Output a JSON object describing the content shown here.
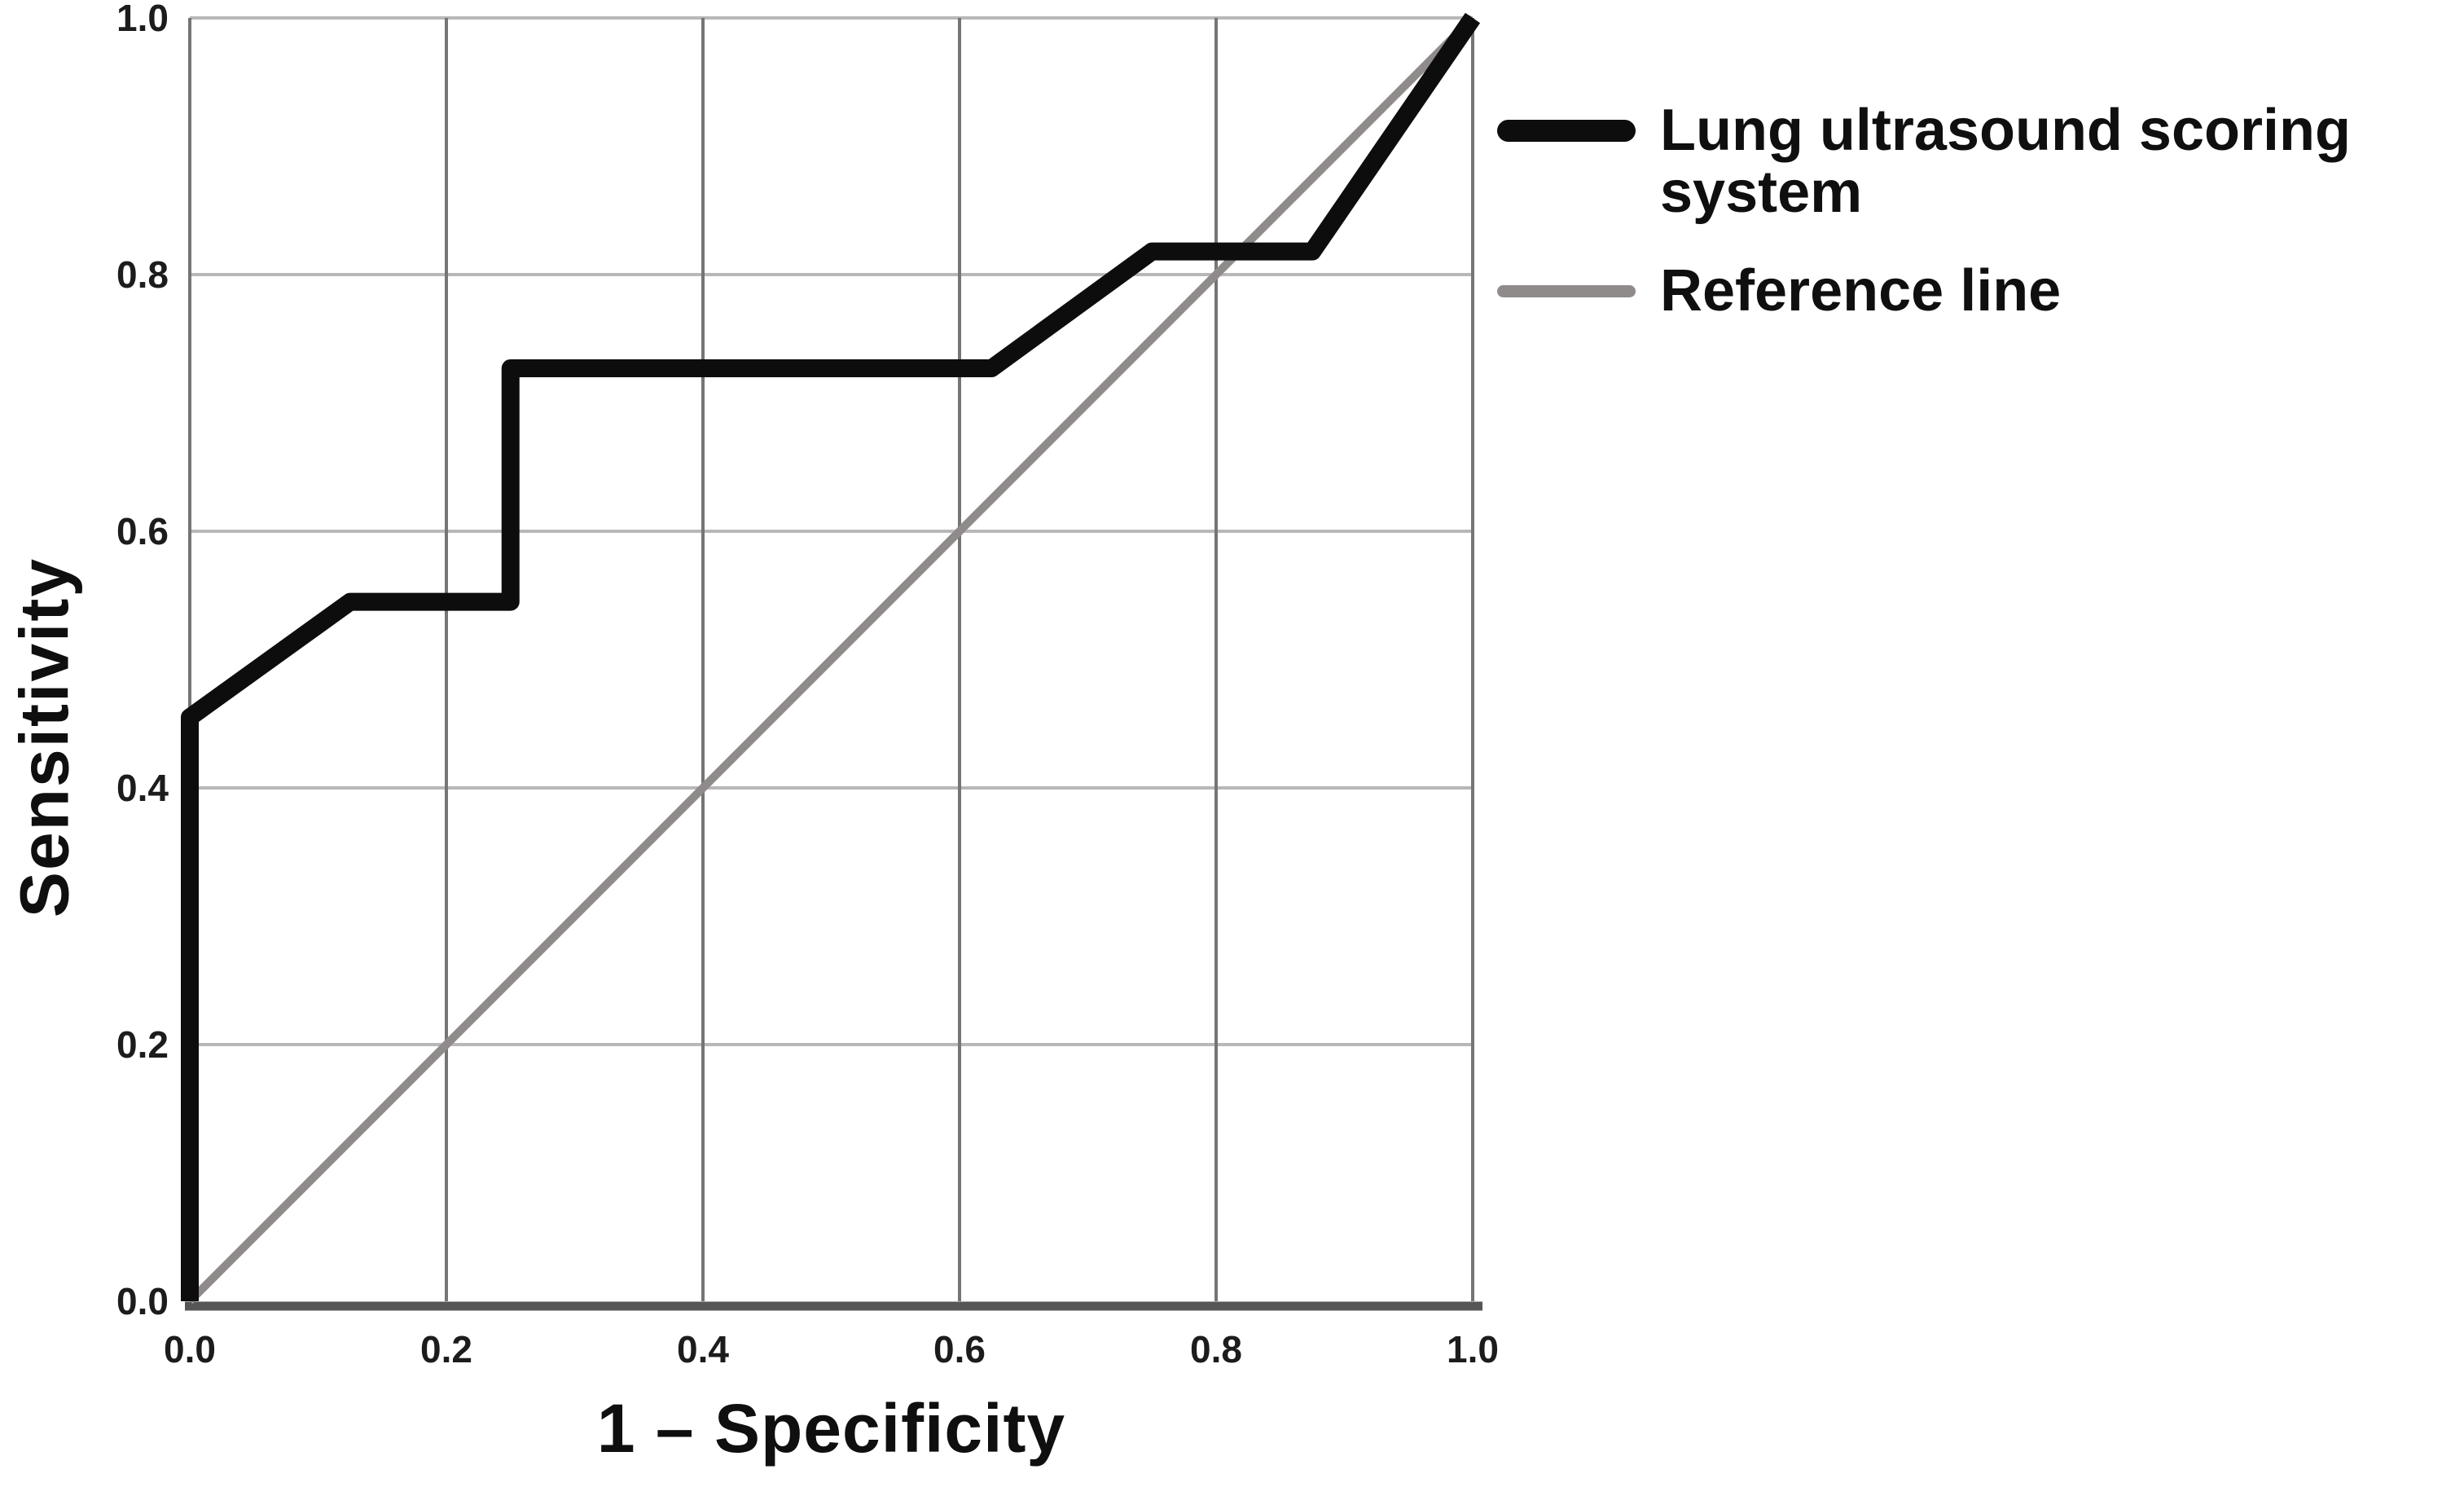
{
  "figure": {
    "legend": {
      "position": "right",
      "items": [
        {
          "label": "Lung ultrasound scoring\nsystem",
          "color": "#0d0d0d"
        },
        {
          "label": "Reference line",
          "color": "#8f8b8b"
        }
      ]
    }
  },
  "chart_data": {
    "type": "line",
    "subtype": "roc-curve",
    "title": "",
    "xlabel": "1 – Specificity",
    "ylabel": "Sensitivity",
    "xlim": [
      0.0,
      1.0
    ],
    "ylim": [
      0.0,
      1.0
    ],
    "grid": true,
    "legend_position": "right",
    "xticks": [
      {
        "v": 0.0,
        "label": "0.0"
      },
      {
        "v": 0.2,
        "label": "0.2"
      },
      {
        "v": 0.4,
        "label": "0.4"
      },
      {
        "v": 0.6,
        "label": "0.6"
      },
      {
        "v": 0.8,
        "label": "0.8"
      },
      {
        "v": 1.0,
        "label": "1.0"
      }
    ],
    "yticks": [
      {
        "v": 0.0,
        "label": "0.0"
      },
      {
        "v": 0.2,
        "label": "0.2"
      },
      {
        "v": 0.4,
        "label": "0.4"
      },
      {
        "v": 0.6,
        "label": "0.6"
      },
      {
        "v": 0.8,
        "label": "0.8"
      },
      {
        "v": 1.0,
        "label": "1.0"
      }
    ],
    "series": [
      {
        "name": "Lung ultrasound scoring system",
        "color": "#0d0d0d",
        "stroke_width": 22,
        "points": [
          [
            0.0,
            0.0
          ],
          [
            0.0,
            0.455
          ],
          [
            0.125,
            0.545
          ],
          [
            0.25,
            0.545
          ],
          [
            0.25,
            0.727
          ],
          [
            0.625,
            0.727
          ],
          [
            0.75,
            0.818
          ],
          [
            0.875,
            0.818
          ],
          [
            1.0,
            1.0
          ]
        ]
      },
      {
        "name": "Reference line",
        "color": "#8f8b8b",
        "stroke_width": 10,
        "points": [
          [
            0.0,
            0.0
          ],
          [
            1.0,
            1.0
          ]
        ]
      }
    ],
    "style": {
      "vgrid_color": "#757575",
      "vgrid_width": 4,
      "hgrid_color": "#b8b8b8",
      "hgrid_width": 4,
      "axis_color": "#565656",
      "axis_width": 11,
      "tick_color": "#1c1c1c"
    }
  }
}
